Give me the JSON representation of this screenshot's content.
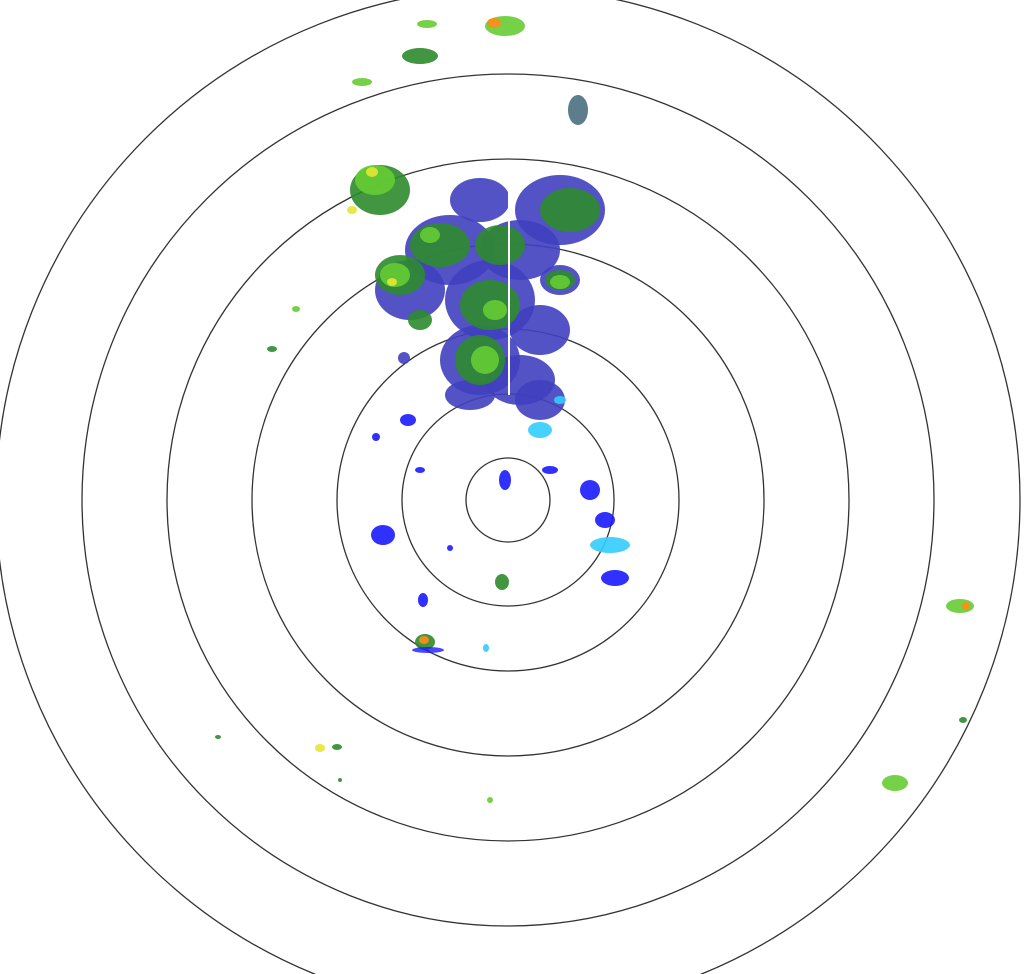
{
  "radar": {
    "ring_count": 7,
    "colors": {
      "ring": "#333333",
      "weak": "#1a1aff",
      "light": "#4040c0",
      "cyan": "#33ccff",
      "moderate": "#2e8b2e",
      "bright": "#66cc33",
      "yellow": "#e6e633",
      "orange": "#ff8c1a",
      "red": "#e03020",
      "clutter": "#4a6f80"
    }
  }
}
